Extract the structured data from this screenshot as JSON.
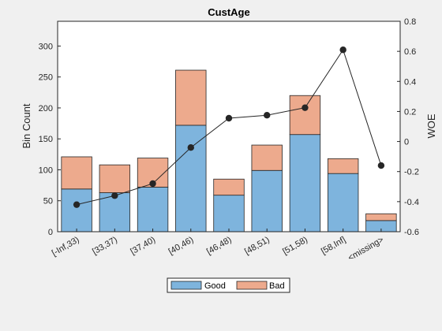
{
  "chart_data": {
    "type": "bar",
    "stacked": true,
    "title": "CustAge",
    "xlabel": "",
    "ylabel": "Bin Count",
    "ylabel_right": "WOE",
    "categories": [
      "[-Inf,33)",
      "[33,37)",
      "[37,40)",
      "[40,46)",
      "[46,48)",
      "[48,51)",
      "[51,58)",
      "[58,Inf]",
      "<missing>"
    ],
    "series": [
      {
        "name": "Good",
        "values": [
          69,
          63,
          72,
          172,
          59,
          99,
          157,
          94,
          18
        ],
        "color": "#7eb4dd"
      },
      {
        "name": "Bad",
        "values": [
          52,
          45,
          47,
          89,
          26,
          41,
          63,
          24,
          11
        ],
        "color": "#edaa8d"
      }
    ],
    "line": {
      "name": "WOE",
      "values": [
        -0.42,
        -0.36,
        -0.28,
        -0.04,
        0.155,
        0.175,
        0.225,
        0.61,
        -0.16
      ],
      "color": "#262626"
    },
    "ylim": [
      0,
      340
    ],
    "yticks": [
      0,
      50,
      100,
      150,
      200,
      250,
      300
    ],
    "ylim_right": [
      -0.6,
      0.8
    ],
    "yticks_right": [
      -0.6,
      -0.4,
      -0.2,
      0,
      0.2,
      0.4,
      0.6,
      0.8
    ],
    "yticklabels_right": [
      "-0.6",
      "-0.4",
      "-0.2",
      "0",
      "0.2",
      "0.4",
      "0.6",
      "0.8"
    ],
    "grid": false,
    "legend_position": "bottom"
  }
}
